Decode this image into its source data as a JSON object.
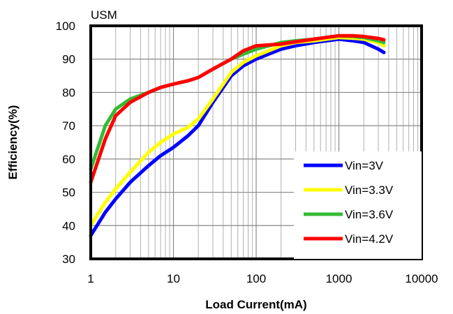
{
  "chart_data": {
    "type": "line",
    "title": "USM",
    "xlabel": "Load Current(mA)",
    "ylabel": "Efficiency(%)",
    "x_scale": "log",
    "xlim": [
      1,
      10000
    ],
    "ylim": [
      30,
      100
    ],
    "x_ticks": [
      "1",
      "10",
      "100",
      "1000",
      "10000"
    ],
    "y_ticks": [
      "30",
      "40",
      "50",
      "60",
      "70",
      "80",
      "90",
      "100"
    ],
    "grid": true,
    "legend_position": "bottom-right",
    "series": [
      {
        "name": "Vin=3V",
        "color": "#0000ff",
        "x": [
          1,
          1.5,
          2,
          3,
          5,
          7,
          10,
          15,
          20,
          30,
          50,
          70,
          100,
          200,
          300,
          500,
          700,
          1000,
          1500,
          2000,
          3000,
          3500
        ],
        "y": [
          37,
          44,
          48,
          53,
          58,
          61,
          63.5,
          67,
          70,
          77,
          85,
          88,
          90,
          93,
          94,
          95,
          95.5,
          96,
          95.5,
          95,
          93,
          92
        ]
      },
      {
        "name": "Vin=3.3V",
        "color": "#ffff00",
        "x": [
          1,
          1.5,
          2,
          3,
          5,
          7,
          10,
          15,
          20,
          30,
          50,
          70,
          100,
          200,
          300,
          500,
          700,
          1000,
          1500,
          2000,
          3000,
          3500
        ],
        "y": [
          40,
          47,
          51,
          56,
          62,
          65,
          67.5,
          69.5,
          72,
          78,
          86,
          89,
          91,
          94,
          95,
          95.5,
          96,
          96.5,
          96.3,
          96,
          95,
          94
        ]
      },
      {
        "name": "Vin=3.6V",
        "color": "#33bb33",
        "x": [
          1,
          1.5,
          2,
          3,
          5,
          7,
          10,
          15,
          20,
          30,
          50,
          70,
          100,
          200,
          300,
          500,
          700,
          1000,
          1500,
          2000,
          3000,
          3500
        ],
        "y": [
          57,
          70,
          75,
          78,
          80,
          81.5,
          82.5,
          83.5,
          84.5,
          87,
          90,
          91.5,
          93,
          95,
          95.5,
          96,
          96.5,
          97,
          96.8,
          96.5,
          95.5,
          95
        ]
      },
      {
        "name": "Vin=4.2V",
        "color": "#ff0000",
        "x": [
          1,
          1.5,
          2,
          3,
          5,
          7,
          10,
          15,
          20,
          30,
          50,
          70,
          100,
          200,
          300,
          500,
          700,
          1000,
          1500,
          2000,
          3000,
          3500
        ],
        "y": [
          53,
          66,
          73,
          77,
          80,
          81.5,
          82.5,
          83.5,
          84.5,
          87,
          90,
          92.5,
          94,
          94.5,
          95.2,
          96,
          96.5,
          97,
          97,
          96.8,
          96.2,
          95.8
        ]
      }
    ]
  }
}
